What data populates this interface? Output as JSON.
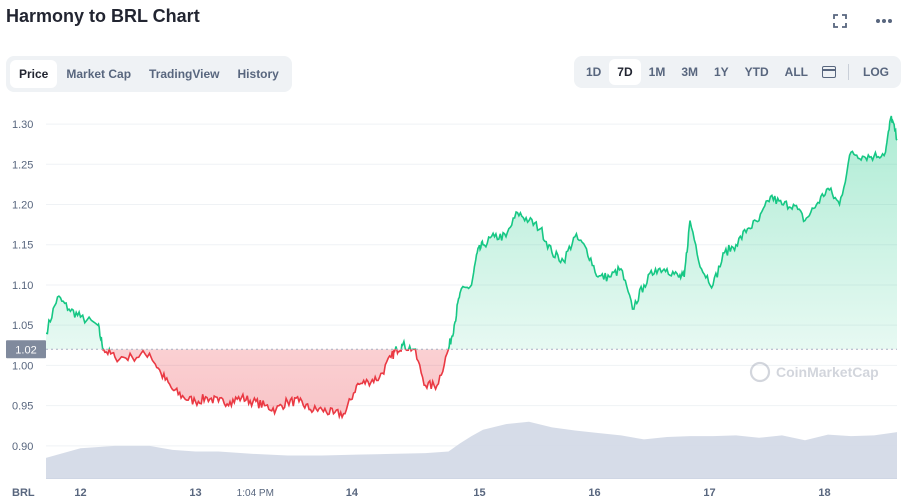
{
  "header": {
    "title": "Harmony to BRL Chart",
    "fullscreen_icon": "expand-icon",
    "more_icon": "more-horizontal-icon"
  },
  "tabs": [
    {
      "label": "Price",
      "active": true
    },
    {
      "label": "Market Cap",
      "active": false
    },
    {
      "label": "TradingView",
      "active": false
    },
    {
      "label": "History",
      "active": false
    }
  ],
  "ranges": [
    {
      "label": "1D",
      "active": false
    },
    {
      "label": "7D",
      "active": true
    },
    {
      "label": "1M",
      "active": false
    },
    {
      "label": "3M",
      "active": false
    },
    {
      "label": "1Y",
      "active": false
    },
    {
      "label": "YTD",
      "active": false
    },
    {
      "label": "ALL",
      "active": false
    }
  ],
  "log_label": "LOG",
  "watermark": "CoinMarketCap",
  "chart_data": {
    "type": "line",
    "currency_label": "BRL",
    "reference_value": 1.02,
    "reference_label": "1.02",
    "y_ticks": [
      0.9,
      0.95,
      1.0,
      1.05,
      1.1,
      1.15,
      1.2,
      1.25,
      1.3
    ],
    "y_tick_labels": [
      "0.90",
      "0.95",
      "1.00",
      "1.05",
      "1.10",
      "1.15",
      "1.20",
      "1.25",
      "1.30"
    ],
    "ylim": [
      0.86,
      1.32
    ],
    "xlim": [
      0,
      7.4
    ],
    "x_ticks": [
      {
        "x": 0.3,
        "label": "12"
      },
      {
        "x": 1.3,
        "label": "13"
      },
      {
        "x": 1.82,
        "label": "1:04 PM"
      },
      {
        "x": 2.66,
        "label": "14"
      },
      {
        "x": 3.77,
        "label": "15"
      },
      {
        "x": 4.77,
        "label": "16"
      },
      {
        "x": 5.77,
        "label": "17"
      },
      {
        "x": 6.77,
        "label": "18"
      }
    ],
    "colors": {
      "up": "#16c784",
      "down": "#ea3943",
      "volume": "#cfd6e4",
      "grid": "#eff2f5"
    },
    "price": {
      "x": [
        0.0,
        0.1,
        0.2,
        0.3,
        0.45,
        0.5,
        0.6,
        0.75,
        0.9,
        1.0,
        1.1,
        1.2,
        1.3,
        1.4,
        1.5,
        1.6,
        1.7,
        1.8,
        1.9,
        2.0,
        2.1,
        2.2,
        2.3,
        2.4,
        2.5,
        2.6,
        2.7,
        2.8,
        2.9,
        3.0,
        3.05,
        3.1,
        3.2,
        3.3,
        3.4,
        3.5,
        3.55,
        3.6,
        3.7,
        3.75,
        3.8,
        3.9,
        4.0,
        4.1,
        4.2,
        4.3,
        4.4,
        4.5,
        4.6,
        4.7,
        4.8,
        4.9,
        5.0,
        5.1,
        5.2,
        5.3,
        5.4,
        5.5,
        5.55,
        5.6,
        5.7,
        5.8,
        5.9,
        6.0,
        6.1,
        6.2,
        6.3,
        6.4,
        6.5,
        6.6,
        6.7,
        6.8,
        6.9,
        7.0,
        7.1,
        7.2,
        7.3,
        7.35,
        7.4
      ],
      "y": [
        1.04,
        1.085,
        1.07,
        1.06,
        1.05,
        1.02,
        1.01,
        1.01,
        1.015,
        0.99,
        0.97,
        0.96,
        0.955,
        0.96,
        0.955,
        0.955,
        0.96,
        0.955,
        0.95,
        0.945,
        0.955,
        0.955,
        0.945,
        0.945,
        0.94,
        0.94,
        0.975,
        0.98,
        0.985,
        1.01,
        1.02,
        1.025,
        1.02,
        0.975,
        0.975,
        1.02,
        1.05,
        1.09,
        1.1,
        1.14,
        1.15,
        1.16,
        1.16,
        1.19,
        1.18,
        1.17,
        1.14,
        1.13,
        1.16,
        1.145,
        1.11,
        1.11,
        1.12,
        1.07,
        1.1,
        1.12,
        1.12,
        1.11,
        1.11,
        1.18,
        1.12,
        1.1,
        1.14,
        1.15,
        1.17,
        1.18,
        1.21,
        1.2,
        1.2,
        1.18,
        1.2,
        1.22,
        1.2,
        1.265,
        1.26,
        1.26,
        1.265,
        1.31,
        1.28
      ]
    },
    "volume": {
      "x": [
        0.0,
        0.3,
        0.6,
        0.9,
        1.1,
        1.3,
        1.5,
        1.8,
        2.1,
        2.4,
        2.7,
        3.0,
        3.3,
        3.5,
        3.6,
        3.7,
        3.8,
        4.0,
        4.2,
        4.4,
        4.6,
        4.8,
        5.0,
        5.2,
        5.4,
        5.6,
        5.8,
        6.0,
        6.2,
        6.4,
        6.6,
        6.8,
        7.0,
        7.2,
        7.4
      ],
      "y": [
        0.885,
        0.897,
        0.9,
        0.9,
        0.895,
        0.893,
        0.893,
        0.89,
        0.888,
        0.888,
        0.889,
        0.89,
        0.891,
        0.893,
        0.903,
        0.912,
        0.92,
        0.927,
        0.93,
        0.923,
        0.919,
        0.916,
        0.913,
        0.908,
        0.911,
        0.912,
        0.912,
        0.913,
        0.91,
        0.913,
        0.907,
        0.914,
        0.912,
        0.913,
        0.917
      ]
    }
  }
}
